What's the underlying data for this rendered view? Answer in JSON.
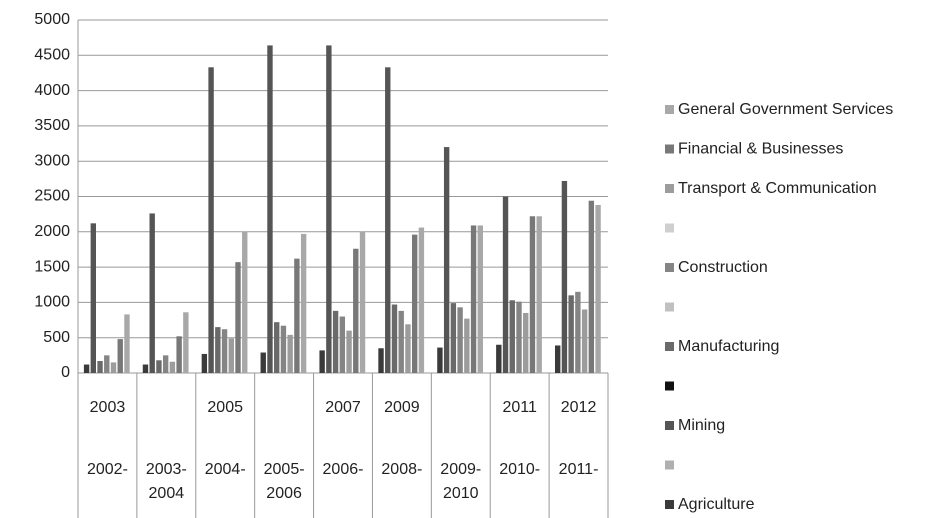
{
  "chart_data": {
    "type": "bar",
    "categories": [
      "2003",
      null,
      "2005",
      null,
      "2007",
      "2009",
      null,
      "2011",
      "2012"
    ],
    "category_groups": [
      "2002-",
      "2003-2004",
      "2004-",
      "2005-2006",
      "2006-",
      "2008-",
      "2009-2010",
      "2010-",
      "2011-"
    ],
    "series": [
      {
        "name": "Agriculture",
        "color": "#3a3a3a",
        "values": [
          120,
          120,
          270,
          290,
          320,
          350,
          360,
          400,
          390
        ]
      },
      {
        "name": null,
        "color": "#b0b0b0",
        "values": [
          null,
          null,
          null,
          null,
          null,
          null,
          null,
          null,
          null
        ]
      },
      {
        "name": "Mining",
        "color": "#555555",
        "values": [
          2120,
          2260,
          4330,
          4640,
          4640,
          4330,
          3200,
          2500,
          2720
        ]
      },
      {
        "name": null,
        "color": "#111111",
        "values": [
          null,
          null,
          null,
          null,
          null,
          null,
          null,
          null,
          null
        ]
      },
      {
        "name": "Manufacturing",
        "color": "#6a6a6a",
        "values": [
          170,
          180,
          650,
          720,
          880,
          970,
          990,
          1030,
          1100
        ]
      },
      {
        "name": null,
        "color": "#c0c0c0",
        "values": [
          null,
          null,
          null,
          null,
          null,
          null,
          null,
          null,
          null
        ]
      },
      {
        "name": "Construction",
        "color": "#858585",
        "values": [
          250,
          250,
          620,
          670,
          800,
          880,
          930,
          1010,
          1150
        ]
      },
      {
        "name": null,
        "color": "#cfcfcf",
        "values": [
          null,
          null,
          null,
          null,
          null,
          null,
          null,
          null,
          null
        ]
      },
      {
        "name": "Transport & Communication",
        "color": "#9c9c9c",
        "values": [
          150,
          160,
          490,
          540,
          600,
          690,
          770,
          850,
          900
        ]
      },
      {
        "name": "Financial & Businesses",
        "color": "#787878",
        "values": [
          480,
          520,
          1570,
          1620,
          1760,
          1960,
          2090,
          2220,
          2440
        ]
      },
      {
        "name": "General Government Services",
        "color": "#a8a8a8",
        "values": [
          830,
          860,
          2000,
          1970,
          2000,
          2060,
          2090,
          2220,
          2380
        ]
      }
    ],
    "ylim": [
      0,
      5000
    ],
    "yticks": [
      0,
      500,
      1000,
      1500,
      2000,
      2500,
      3000,
      3500,
      4000,
      4500,
      5000
    ],
    "grid": true,
    "legend": "right"
  }
}
